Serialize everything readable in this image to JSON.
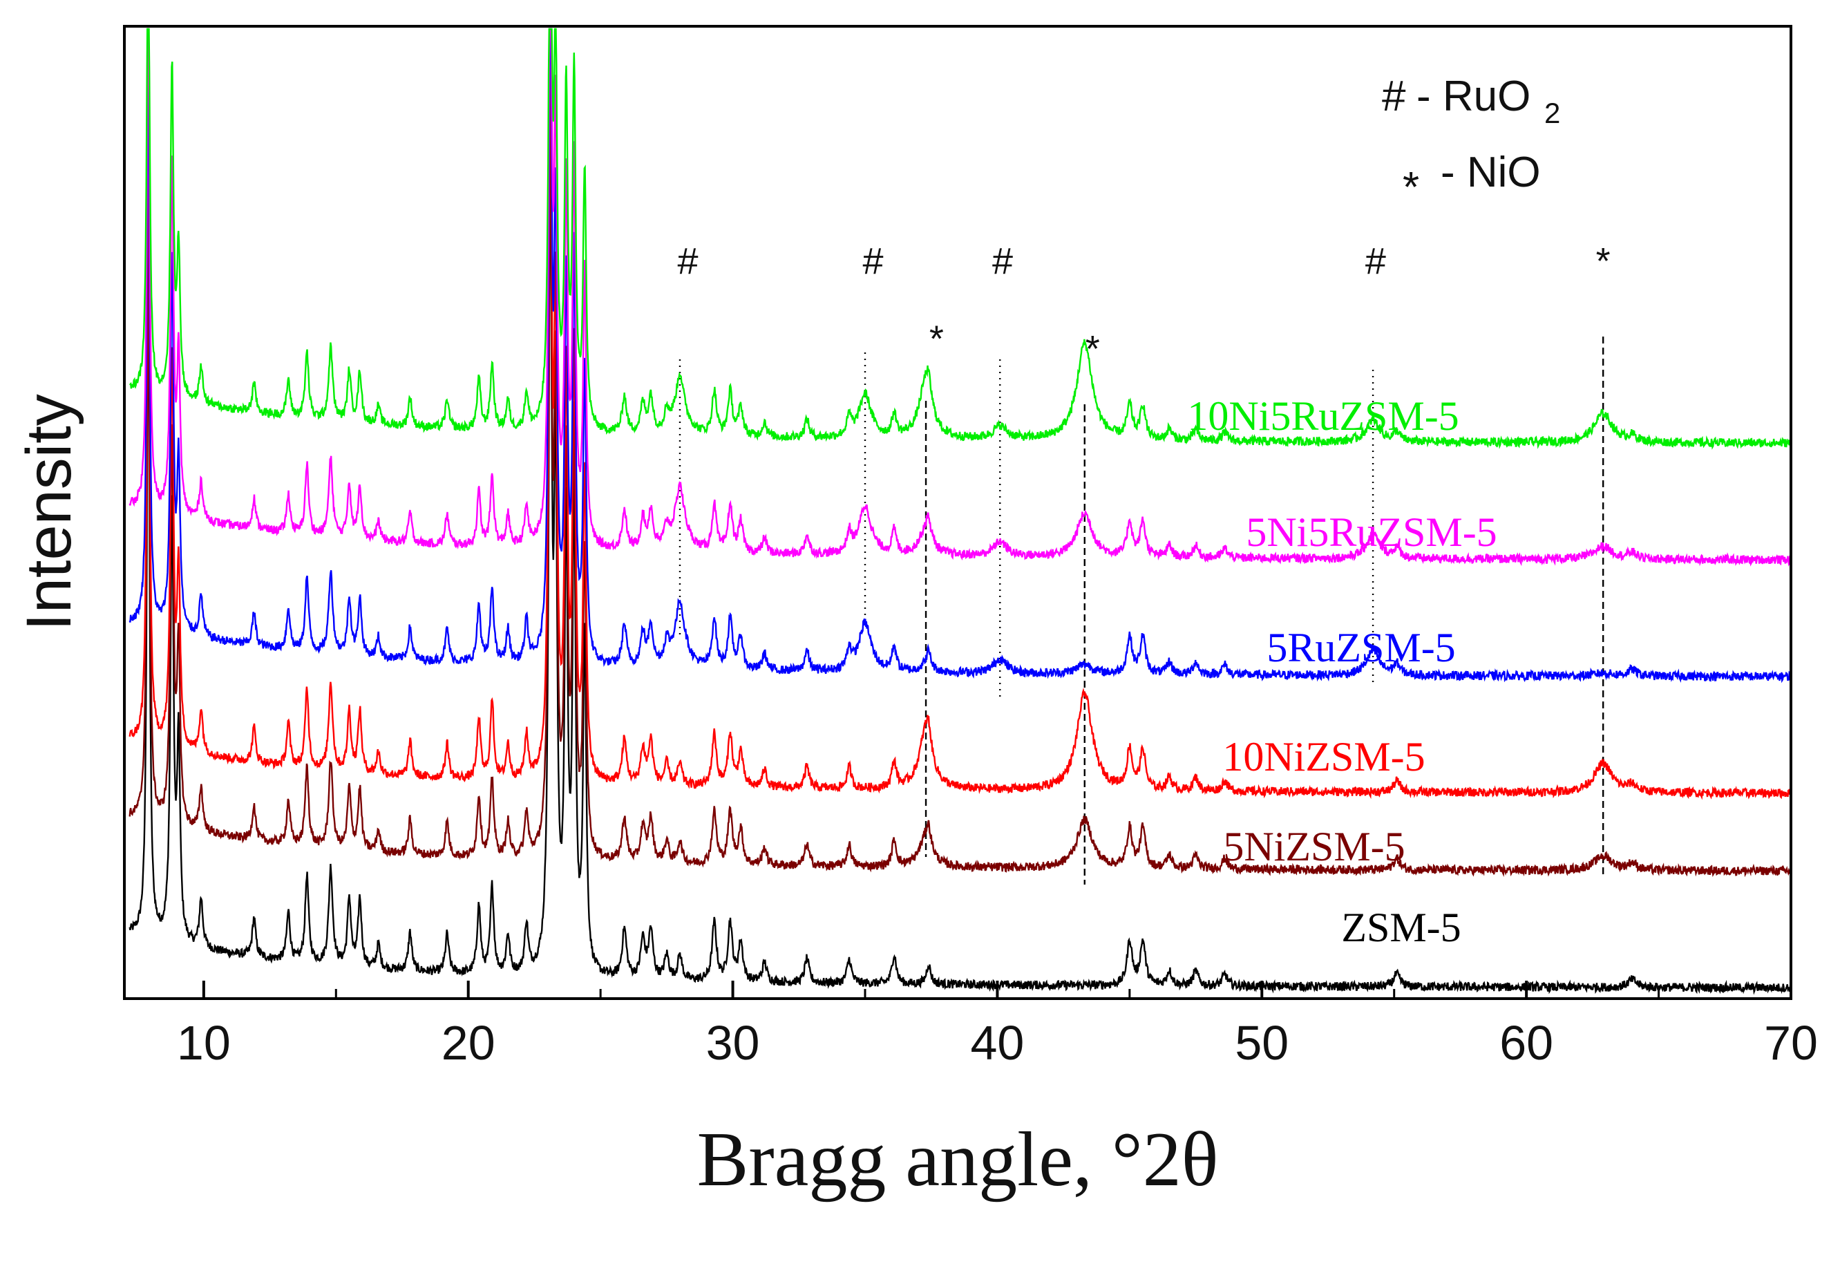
{
  "chart_data": {
    "type": "line",
    "title": "",
    "xlabel": "Bragg angle, °2θ",
    "ylabel": "Intensity",
    "xlim": [
      7,
      70
    ],
    "ylim": [
      0,
      100
    ],
    "xticks": [
      10,
      20,
      30,
      40,
      50,
      60,
      70
    ],
    "y_units": "arbitrary (stacked, offset)",
    "series": [
      {
        "name": "ZSM-5",
        "color": "#000000",
        "offset": 0,
        "strength": 1.0,
        "ru": 0,
        "ni": 0,
        "end_level": 1
      },
      {
        "name": "5NiZSM-5",
        "color": "#7a0000",
        "offset": 13,
        "strength": 0.9,
        "ru": 0,
        "ni": 0.5,
        "end_level": 13
      },
      {
        "name": "10NiZSM-5",
        "color": "#ff0000",
        "offset": 22,
        "strength": 0.9,
        "ru": 0,
        "ni": 1.0,
        "end_level": 21
      },
      {
        "name": "5RuZSM-5",
        "color": "#0000ff",
        "offset": 34,
        "strength": 0.85,
        "ru": 1.0,
        "ni": 0.1,
        "end_level": 33
      },
      {
        "name": "5Ni5RuZSM-5",
        "color": "#ff00ff",
        "offset": 46,
        "strength": 0.8,
        "ru": 1.0,
        "ni": 0.45,
        "end_level": 45
      },
      {
        "name": "10Ni5RuZSM-5",
        "color": "#00ee00",
        "offset": 58,
        "strength": 0.75,
        "ru": 0.9,
        "ni": 1.0,
        "end_level": 57
      }
    ],
    "zsm5_peaks": [
      {
        "x": 7.9,
        "h": 70,
        "w": 0.06
      },
      {
        "x": 8.8,
        "h": 45,
        "w": 0.07
      },
      {
        "x": 9.05,
        "h": 20,
        "w": 0.07
      },
      {
        "x": 9.9,
        "h": 5,
        "w": 0.08
      },
      {
        "x": 11.9,
        "h": 4,
        "w": 0.08
      },
      {
        "x": 13.2,
        "h": 5,
        "w": 0.08
      },
      {
        "x": 13.9,
        "h": 9,
        "w": 0.08
      },
      {
        "x": 14.8,
        "h": 10,
        "w": 0.09
      },
      {
        "x": 15.5,
        "h": 7,
        "w": 0.08
      },
      {
        "x": 15.9,
        "h": 7,
        "w": 0.08
      },
      {
        "x": 16.6,
        "h": 2.5,
        "w": 0.08
      },
      {
        "x": 17.8,
        "h": 4,
        "w": 0.08
      },
      {
        "x": 19.2,
        "h": 4,
        "w": 0.08
      },
      {
        "x": 20.4,
        "h": 7,
        "w": 0.08
      },
      {
        "x": 20.9,
        "h": 9,
        "w": 0.08
      },
      {
        "x": 21.5,
        "h": 4,
        "w": 0.08
      },
      {
        "x": 22.2,
        "h": 5,
        "w": 0.08
      },
      {
        "x": 23.1,
        "h": 80,
        "w": 0.07
      },
      {
        "x": 23.3,
        "h": 50,
        "w": 0.07
      },
      {
        "x": 23.7,
        "h": 45,
        "w": 0.07
      },
      {
        "x": 24.0,
        "h": 48,
        "w": 0.07
      },
      {
        "x": 24.4,
        "h": 35,
        "w": 0.07
      },
      {
        "x": 25.9,
        "h": 5,
        "w": 0.1
      },
      {
        "x": 26.6,
        "h": 4,
        "w": 0.1
      },
      {
        "x": 26.9,
        "h": 5,
        "w": 0.1
      },
      {
        "x": 27.5,
        "h": 2.5,
        "w": 0.1
      },
      {
        "x": 28.0,
        "h": 2.5,
        "w": 0.1
      },
      {
        "x": 29.3,
        "h": 6,
        "w": 0.1
      },
      {
        "x": 29.9,
        "h": 6,
        "w": 0.1
      },
      {
        "x": 30.3,
        "h": 4,
        "w": 0.1
      },
      {
        "x": 31.2,
        "h": 2,
        "w": 0.1
      },
      {
        "x": 32.8,
        "h": 2.5,
        "w": 0.1
      },
      {
        "x": 34.4,
        "h": 2.5,
        "w": 0.1
      },
      {
        "x": 36.1,
        "h": 3,
        "w": 0.1
      },
      {
        "x": 37.4,
        "h": 2,
        "w": 0.1
      },
      {
        "x": 45.0,
        "h": 4.5,
        "w": 0.12
      },
      {
        "x": 45.5,
        "h": 4.5,
        "w": 0.12
      },
      {
        "x": 46.5,
        "h": 1.5,
        "w": 0.12
      },
      {
        "x": 47.5,
        "h": 1.5,
        "w": 0.12
      },
      {
        "x": 48.6,
        "h": 1.2,
        "w": 0.12
      },
      {
        "x": 55.1,
        "h": 1.3,
        "w": 0.15
      },
      {
        "x": 64.0,
        "h": 0.8,
        "w": 0.2
      }
    ],
    "ru_peaks": [
      {
        "x": 28.0,
        "h": 5,
        "w": 0.3
      },
      {
        "x": 35.0,
        "h": 5,
        "w": 0.28
      },
      {
        "x": 40.1,
        "h": 1.5,
        "w": 0.3
      },
      {
        "x": 54.2,
        "h": 2.5,
        "w": 0.3
      }
    ],
    "ni_peaks": [
      {
        "x": 37.3,
        "h": 6,
        "w": 0.3
      },
      {
        "x": 43.3,
        "h": 10,
        "w": 0.35
      },
      {
        "x": 62.9,
        "h": 3,
        "w": 0.4
      }
    ],
    "reference_lines": [
      {
        "x": 28.0,
        "style": "dotted"
      },
      {
        "x": 35.0,
        "style": "dotted"
      },
      {
        "x": 40.1,
        "style": "dotted"
      },
      {
        "x": 54.2,
        "style": "dotted"
      },
      {
        "x": 37.3,
        "style": "dashed"
      },
      {
        "x": 43.3,
        "style": "dashed"
      },
      {
        "x": 62.9,
        "style": "dashed"
      }
    ],
    "annotations": [
      {
        "text": "#",
        "x": 28.3,
        "y_level": 98,
        "meaning": "RuO2"
      },
      {
        "text": "#",
        "x": 35.3,
        "y_level": 98,
        "meaning": "RuO2"
      },
      {
        "text": "#",
        "x": 40.2,
        "y_level": 98,
        "meaning": "RuO2"
      },
      {
        "text": "#",
        "x": 54.3,
        "y_level": 98,
        "meaning": "RuO2"
      },
      {
        "text": "*",
        "x": 37.7,
        "y_level": 90,
        "meaning": "NiO"
      },
      {
        "text": "*",
        "x": 43.6,
        "y_level": 89,
        "meaning": "NiO"
      },
      {
        "text": "*",
        "x": 62.9,
        "y_level": 98,
        "meaning": "NiO"
      }
    ]
  },
  "legend": {
    "ruo2_symbol": "#",
    "ruo2_text": "- RuO",
    "ruo2_sub": "2",
    "nio_symbol": "*",
    "nio_text": "- NiO"
  }
}
